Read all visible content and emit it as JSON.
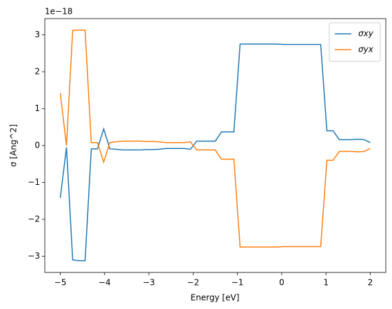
{
  "chart_data": {
    "type": "line",
    "x_label": "Energy [eV]",
    "y_label": "σ [Ang^2]",
    "y_offset_label": "1e−18",
    "xlim": [
      -5.35,
      2.35
    ],
    "ylim": [
      -3.44,
      3.44
    ],
    "xticks": [
      {
        "value": -5,
        "label": "−5"
      },
      {
        "value": -4,
        "label": "−4"
      },
      {
        "value": -3,
        "label": "−3"
      },
      {
        "value": -2,
        "label": "−2"
      },
      {
        "value": -1,
        "label": "−1"
      },
      0,
      1,
      2
    ],
    "yticks": [
      {
        "value": -3,
        "label": "−3"
      },
      {
        "value": -2,
        "label": "−2"
      },
      {
        "value": -1,
        "label": "−1"
      },
      0,
      1,
      2,
      3
    ],
    "legend": "upper right",
    "x": [
      -5,
      -4.86,
      -4.72,
      -4.58,
      -4.44,
      -4.3,
      -4.16,
      -4.02,
      -3.88,
      -3.74,
      -3.6,
      -3.46,
      -3.32,
      -3.18,
      -3.04,
      -2.9,
      -2.76,
      -2.62,
      -2.48,
      -2.34,
      -2.2,
      -2.06,
      -1.92,
      -1.78,
      -1.64,
      -1.5,
      -1.36,
      -1.22,
      -1.08,
      -0.94,
      -0.8,
      -0.66,
      -0.52,
      -0.38,
      -0.24,
      -0.1,
      0.04,
      0.18,
      0.32,
      0.46,
      0.6,
      0.74,
      0.88,
      1.02,
      1.16,
      1.3,
      1.44,
      1.58,
      1.72,
      1.86,
      2.0
    ],
    "series": [
      {
        "name": "σxy",
        "color": "#1f77b4",
        "values": [
          -1.42,
          -0.05,
          -3.1,
          -3.12,
          -3.12,
          -0.09,
          -0.09,
          0.45,
          -0.09,
          -0.1,
          -0.12,
          -0.12,
          -0.12,
          -0.12,
          -0.11,
          -0.11,
          -0.1,
          -0.08,
          -0.08,
          -0.08,
          -0.08,
          -0.1,
          0.12,
          0.12,
          0.12,
          0.12,
          0.37,
          0.37,
          0.37,
          2.75,
          2.75,
          2.75,
          2.75,
          2.75,
          2.75,
          2.75,
          2.74,
          2.74,
          2.74,
          2.74,
          2.74,
          2.74,
          2.74,
          0.4,
          0.4,
          0.16,
          0.16,
          0.16,
          0.17,
          0.16,
          0.08
        ]
      },
      {
        "name": "σyx",
        "color": "#ff7f0e",
        "values": [
          1.42,
          0.0,
          3.12,
          3.13,
          3.13,
          0.08,
          0.08,
          -0.45,
          0.08,
          0.1,
          0.12,
          0.12,
          0.12,
          0.12,
          0.11,
          0.11,
          0.1,
          0.08,
          0.08,
          0.08,
          0.08,
          0.1,
          -0.12,
          -0.12,
          -0.12,
          -0.12,
          -0.37,
          -0.37,
          -0.37,
          -2.75,
          -2.75,
          -2.75,
          -2.75,
          -2.75,
          -2.75,
          -2.75,
          -2.74,
          -2.74,
          -2.74,
          -2.74,
          -2.74,
          -2.74,
          -2.74,
          -0.4,
          -0.4,
          -0.16,
          -0.16,
          -0.16,
          -0.17,
          -0.16,
          -0.08
        ]
      }
    ]
  }
}
